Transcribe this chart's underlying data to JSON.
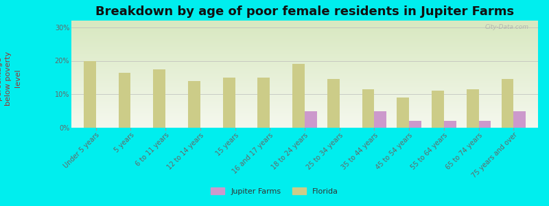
{
  "title": "Breakdown by age of poor female residents in Jupiter Farms",
  "ylabel": "percentage\nbelow poverty\nlevel",
  "categories": [
    "Under 5 years",
    "5 years",
    "6 to 11 years",
    "12 to 14 years",
    "15 years",
    "16 and 17 years",
    "18 to 24 years",
    "25 to 34 years",
    "35 to 44 years",
    "45 to 54 years",
    "55 to 64 years",
    "65 to 74 years",
    "75 years and over"
  ],
  "jupiter_farms": [
    0,
    0,
    0,
    0,
    0,
    0,
    5.0,
    0,
    5.0,
    2.0,
    2.0,
    2.0,
    5.0
  ],
  "florida": [
    20.0,
    16.5,
    17.5,
    14.0,
    15.0,
    15.0,
    19.0,
    14.5,
    11.5,
    9.0,
    11.0,
    11.5,
    14.5
  ],
  "jupiter_color": "#cc99cc",
  "florida_color": "#cccc88",
  "background_color": "#00eeee",
  "plot_bg_top": "#eef2dc",
  "plot_bg_bottom": "#f8faf0",
  "ylim": [
    0,
    32
  ],
  "yticks": [
    0,
    10,
    20,
    30
  ],
  "ytick_labels": [
    "0%",
    "10%",
    "20%",
    "30%"
  ],
  "bar_width": 0.35,
  "title_fontsize": 13,
  "axis_label_fontsize": 8,
  "tick_fontsize": 7,
  "watermark": "City-Data.com"
}
